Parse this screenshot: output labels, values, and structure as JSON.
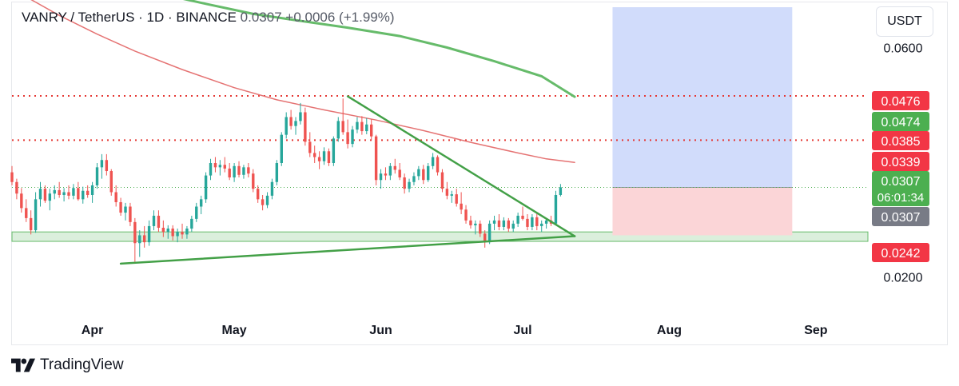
{
  "header": {
    "symbol": "VANRY / TetherUS · 1D · BINANCE",
    "last": "0.0307",
    "change": "+0.0006 (+1.99%)"
  },
  "currency_button": "USDT",
  "footer": {
    "brand": "TradingView",
    "icon": "tradingview-logo-icon"
  },
  "chart_data": {
    "type": "candlestick",
    "title": "VANRY / TetherUS · 1D · BINANCE",
    "x_tick_labels": [
      "Apr",
      "May",
      "Jun",
      "Jul",
      "Aug",
      "Sep"
    ],
    "x_ticks": [
      "2024-04-01",
      "2024-05-01",
      "2024-06-01",
      "2024-07-01",
      "2024-08-01",
      "2024-09-01"
    ],
    "x_range": [
      "2024-03-15",
      "2024-09-12"
    ],
    "y_scale": "log",
    "y_range": [
      0.0166,
      0.0745
    ],
    "y_tick_labels": [
      "0.0600",
      "0.0200"
    ],
    "y_ticks": [
      0.06,
      0.02
    ],
    "price_labels": [
      {
        "value": "0.0476",
        "color": "#f23645"
      },
      {
        "value": "0.0474",
        "color": "#4caf50"
      },
      {
        "value": "0.0385",
        "color": "#f23645"
      },
      {
        "value": "0.0339",
        "color": "#f23645"
      },
      {
        "value": "0.0307",
        "sub": "06:01:34",
        "color": "#4caf50"
      },
      {
        "value": "0.0307",
        "color": "#787b86"
      },
      {
        "value": "0.0242",
        "color": "#f23645"
      }
    ],
    "horizontal_lines": [
      {
        "value": 0.0476,
        "style": "dotted",
        "color": "#e53935"
      },
      {
        "value": 0.0385,
        "style": "dotted",
        "color": "#e53935"
      },
      {
        "value": 0.0307,
        "style": "dotted",
        "color": "#4caf50"
      }
    ],
    "support_zone": [
      0.0237,
      0.0248
    ],
    "position_tool": {
      "start": "2024-07-20",
      "end": "2024-08-27",
      "entry": 0.0307,
      "stop": 0.0244,
      "target": 0.0728,
      "profit_color": "#d1dcfb",
      "loss_color": "#fbd5d7"
    },
    "trendlines": [
      {
        "from": [
          "2024-05-25",
          0.0475
        ],
        "to": [
          "2024-07-12",
          0.0243
        ],
        "color": "#43a047"
      },
      {
        "from": [
          "2024-04-07",
          0.0213
        ],
        "to": [
          "2024-07-12",
          0.0243
        ],
        "color": "#43a047"
      }
    ],
    "moving_averages": [
      {
        "color": "#e57373",
        "points": [
          [
            "2024-03-17",
            0.0775
          ],
          [
            "2024-03-25",
            0.07
          ],
          [
            "2024-04-02",
            0.064
          ],
          [
            "2024-04-10",
            0.059
          ],
          [
            "2024-04-20",
            0.054
          ],
          [
            "2024-05-01",
            0.0495
          ],
          [
            "2024-05-10",
            0.0467
          ],
          [
            "2024-05-20",
            0.0445
          ],
          [
            "2024-05-31",
            0.0424
          ],
          [
            "2024-06-10",
            0.0403
          ],
          [
            "2024-06-20",
            0.0381
          ],
          [
            "2024-06-30",
            0.0362
          ],
          [
            "2024-07-06",
            0.0352
          ],
          [
            "2024-07-12",
            0.0346
          ]
        ]
      },
      {
        "color": "#66bb6a",
        "points": [
          [
            "2024-04-15",
            0.0778
          ],
          [
            "2024-04-25",
            0.074
          ],
          [
            "2024-05-05",
            0.0705
          ],
          [
            "2024-05-15",
            0.0682
          ],
          [
            "2024-05-25",
            0.066
          ],
          [
            "2024-06-05",
            0.0634
          ],
          [
            "2024-06-15",
            0.06
          ],
          [
            "2024-06-25",
            0.0562
          ],
          [
            "2024-07-05",
            0.0523
          ],
          [
            "2024-07-12",
            0.0474
          ]
        ]
      }
    ],
    "candles": [
      [
        "2024-03-15",
        0.033,
        0.034,
        0.031,
        0.0315
      ],
      [
        "2024-03-16",
        0.0315,
        0.032,
        0.029,
        0.0298
      ],
      [
        "2024-03-17",
        0.0298,
        0.0306,
        0.0272,
        0.0278
      ],
      [
        "2024-03-18",
        0.0278,
        0.029,
        0.026,
        0.0265
      ],
      [
        "2024-03-19",
        0.0265,
        0.0275,
        0.0245,
        0.025
      ],
      [
        "2024-03-20",
        0.025,
        0.03,
        0.0247,
        0.029
      ],
      [
        "2024-03-21",
        0.029,
        0.0315,
        0.028,
        0.0305
      ],
      [
        "2024-03-22",
        0.0305,
        0.031,
        0.0285,
        0.0288
      ],
      [
        "2024-03-23",
        0.0288,
        0.0305,
        0.0275,
        0.0298
      ],
      [
        "2024-03-24",
        0.0298,
        0.031,
        0.029,
        0.0303
      ],
      [
        "2024-03-25",
        0.0303,
        0.0315,
        0.0292,
        0.0296
      ],
      [
        "2024-03-26",
        0.0296,
        0.0306,
        0.0287,
        0.03
      ],
      [
        "2024-03-27",
        0.03,
        0.031,
        0.029,
        0.0295
      ],
      [
        "2024-03-28",
        0.0295,
        0.0312,
        0.029,
        0.0306
      ],
      [
        "2024-03-29",
        0.0306,
        0.0315,
        0.0288,
        0.029
      ],
      [
        "2024-03-30",
        0.029,
        0.0308,
        0.0284,
        0.0302
      ],
      [
        "2024-03-31",
        0.0302,
        0.031,
        0.0292,
        0.0296
      ],
      [
        "2024-04-01",
        0.0296,
        0.0315,
        0.0285,
        0.031
      ],
      [
        "2024-04-02",
        0.031,
        0.0345,
        0.0305,
        0.0338
      ],
      [
        "2024-04-03",
        0.0338,
        0.036,
        0.032,
        0.035
      ],
      [
        "2024-04-04",
        0.035,
        0.036,
        0.0325,
        0.0332
      ],
      [
        "2024-04-05",
        0.0332,
        0.0335,
        0.0295,
        0.03
      ],
      [
        "2024-04-06",
        0.03,
        0.031,
        0.028,
        0.0286
      ],
      [
        "2024-04-07",
        0.0286,
        0.0292,
        0.0268,
        0.0272
      ],
      [
        "2024-04-08",
        0.0272,
        0.0285,
        0.0262,
        0.028
      ],
      [
        "2024-04-09",
        0.028,
        0.0285,
        0.0255,
        0.026
      ],
      [
        "2024-04-10",
        0.026,
        0.0265,
        0.0215,
        0.0235
      ],
      [
        "2024-04-11",
        0.0235,
        0.025,
        0.022,
        0.0244
      ],
      [
        "2024-04-12",
        0.0244,
        0.0255,
        0.023,
        0.0236
      ],
      [
        "2024-04-13",
        0.0236,
        0.0262,
        0.0232,
        0.0255
      ],
      [
        "2024-04-14",
        0.0255,
        0.0275,
        0.025,
        0.0268
      ],
      [
        "2024-04-15",
        0.0268,
        0.0275,
        0.0248,
        0.0253
      ],
      [
        "2024-04-16",
        0.0253,
        0.0262,
        0.0242,
        0.0248
      ],
      [
        "2024-04-17",
        0.0248,
        0.0256,
        0.024,
        0.0252
      ],
      [
        "2024-04-18",
        0.0252,
        0.0256,
        0.0238,
        0.0243
      ],
      [
        "2024-04-19",
        0.0243,
        0.0252,
        0.0236,
        0.0248
      ],
      [
        "2024-04-20",
        0.0248,
        0.0258,
        0.024,
        0.0245
      ],
      [
        "2024-04-21",
        0.0245,
        0.0255,
        0.024,
        0.0252
      ],
      [
        "2024-04-22",
        0.0252,
        0.0268,
        0.0248,
        0.0264
      ],
      [
        "2024-04-23",
        0.0264,
        0.0285,
        0.026,
        0.028
      ],
      [
        "2024-04-24",
        0.028,
        0.0295,
        0.027,
        0.029
      ],
      [
        "2024-04-25",
        0.029,
        0.033,
        0.0285,
        0.0325
      ],
      [
        "2024-04-26",
        0.0325,
        0.0352,
        0.0318,
        0.0345
      ],
      [
        "2024-04-27",
        0.0345,
        0.0355,
        0.033,
        0.0338
      ],
      [
        "2024-04-28",
        0.0338,
        0.035,
        0.0325,
        0.0342
      ],
      [
        "2024-04-29",
        0.0342,
        0.0355,
        0.033,
        0.0336
      ],
      [
        "2024-04-30",
        0.0336,
        0.0345,
        0.0318,
        0.0322
      ],
      [
        "2024-05-01",
        0.0322,
        0.0345,
        0.0315,
        0.034
      ],
      [
        "2024-05-02",
        0.034,
        0.0348,
        0.0322,
        0.0326
      ],
      [
        "2024-05-03",
        0.0326,
        0.0342,
        0.032,
        0.0338
      ],
      [
        "2024-05-04",
        0.0338,
        0.0345,
        0.0322,
        0.0328
      ],
      [
        "2024-05-05",
        0.0328,
        0.0335,
        0.03,
        0.0305
      ],
      [
        "2024-05-06",
        0.0305,
        0.031,
        0.0285,
        0.029
      ],
      [
        "2024-05-07",
        0.029,
        0.0296,
        0.0275,
        0.0282
      ],
      [
        "2024-05-08",
        0.0282,
        0.03,
        0.0278,
        0.0295
      ],
      [
        "2024-05-09",
        0.0295,
        0.032,
        0.029,
        0.0315
      ],
      [
        "2024-05-10",
        0.0315,
        0.035,
        0.031,
        0.0345
      ],
      [
        "2024-05-11",
        0.0345,
        0.04,
        0.034,
        0.0395
      ],
      [
        "2024-05-12",
        0.0395,
        0.044,
        0.0388,
        0.043
      ],
      [
        "2024-05-13",
        0.043,
        0.0445,
        0.0405,
        0.0412
      ],
      [
        "2024-05-14",
        0.0412,
        0.043,
        0.0395,
        0.0422
      ],
      [
        "2024-05-15",
        0.0422,
        0.046,
        0.0415,
        0.044
      ],
      [
        "2024-05-16",
        0.044,
        0.045,
        0.0375,
        0.0382
      ],
      [
        "2024-05-17",
        0.0382,
        0.04,
        0.0355,
        0.0362
      ],
      [
        "2024-05-18",
        0.0362,
        0.0375,
        0.0345,
        0.0355
      ],
      [
        "2024-05-19",
        0.0355,
        0.0365,
        0.0335,
        0.0348
      ],
      [
        "2024-05-20",
        0.0348,
        0.0372,
        0.0342,
        0.0365
      ],
      [
        "2024-05-21",
        0.0365,
        0.037,
        0.034,
        0.0345
      ],
      [
        "2024-05-22",
        0.0345,
        0.0392,
        0.034,
        0.0388
      ],
      [
        "2024-05-23",
        0.0388,
        0.043,
        0.0382,
        0.0422
      ],
      [
        "2024-05-24",
        0.0422,
        0.047,
        0.0395,
        0.04
      ],
      [
        "2024-05-25",
        0.04,
        0.0425,
        0.037,
        0.0378
      ],
      [
        "2024-05-26",
        0.0378,
        0.0412,
        0.0372,
        0.0405
      ],
      [
        "2024-05-27",
        0.0405,
        0.043,
        0.0398,
        0.042
      ],
      [
        "2024-05-28",
        0.042,
        0.0432,
        0.0395,
        0.0402
      ],
      [
        "2024-05-29",
        0.0402,
        0.0428,
        0.0396,
        0.0415
      ],
      [
        "2024-05-30",
        0.0415,
        0.0425,
        0.0385,
        0.0392
      ],
      [
        "2024-05-31",
        0.0392,
        0.0395,
        0.031,
        0.0318
      ],
      [
        "2024-06-01",
        0.0318,
        0.0335,
        0.0305,
        0.0328
      ],
      [
        "2024-06-02",
        0.0328,
        0.0338,
        0.0318,
        0.0325
      ],
      [
        "2024-06-03",
        0.0325,
        0.0345,
        0.0318,
        0.034
      ],
      [
        "2024-06-04",
        0.034,
        0.0352,
        0.0328,
        0.0334
      ],
      [
        "2024-06-05",
        0.0334,
        0.0345,
        0.0318,
        0.0322
      ],
      [
        "2024-06-06",
        0.0322,
        0.0328,
        0.0298,
        0.0305
      ],
      [
        "2024-06-07",
        0.0305,
        0.032,
        0.03,
        0.0315
      ],
      [
        "2024-06-08",
        0.0315,
        0.033,
        0.031,
        0.0324
      ],
      [
        "2024-06-09",
        0.0324,
        0.034,
        0.0318,
        0.0335
      ],
      [
        "2024-06-10",
        0.0335,
        0.0342,
        0.0312,
        0.0318
      ],
      [
        "2024-06-11",
        0.0318,
        0.0345,
        0.0315,
        0.034
      ],
      [
        "2024-06-12",
        0.034,
        0.0362,
        0.0335,
        0.0355
      ],
      [
        "2024-06-13",
        0.0355,
        0.0358,
        0.0325,
        0.033
      ],
      [
        "2024-06-14",
        0.033,
        0.0335,
        0.03,
        0.0305
      ],
      [
        "2024-06-15",
        0.0305,
        0.0315,
        0.029,
        0.0295
      ],
      [
        "2024-06-16",
        0.0295,
        0.0302,
        0.0285,
        0.0297
      ],
      [
        "2024-06-17",
        0.0297,
        0.0305,
        0.028,
        0.0284
      ],
      [
        "2024-06-18",
        0.0284,
        0.03,
        0.027,
        0.0276
      ],
      [
        "2024-06-19",
        0.0276,
        0.0282,
        0.0258,
        0.0262
      ],
      [
        "2024-06-20",
        0.0262,
        0.0268,
        0.0252,
        0.0256
      ],
      [
        "2024-06-21",
        0.0256,
        0.0262,
        0.0245,
        0.0258
      ],
      [
        "2024-06-22",
        0.0258,
        0.0262,
        0.0242,
        0.0246
      ],
      [
        "2024-06-23",
        0.0246,
        0.025,
        0.023,
        0.0236
      ],
      [
        "2024-06-24",
        0.0236,
        0.0262,
        0.0234,
        0.0258
      ],
      [
        "2024-06-25",
        0.0258,
        0.0268,
        0.025,
        0.0262
      ],
      [
        "2024-06-26",
        0.0262,
        0.027,
        0.025,
        0.0254
      ],
      [
        "2024-06-27",
        0.0254,
        0.0266,
        0.025,
        0.0262
      ],
      [
        "2024-06-28",
        0.0262,
        0.0265,
        0.0248,
        0.0252
      ],
      [
        "2024-06-29",
        0.0252,
        0.0262,
        0.0248,
        0.0258
      ],
      [
        "2024-06-30",
        0.0258,
        0.0272,
        0.0254,
        0.0268
      ],
      [
        "2024-07-01",
        0.0268,
        0.028,
        0.0262,
        0.0264
      ],
      [
        "2024-07-02",
        0.0264,
        0.027,
        0.025,
        0.0254
      ],
      [
        "2024-07-03",
        0.0254,
        0.027,
        0.025,
        0.0266
      ],
      [
        "2024-07-04",
        0.0266,
        0.0272,
        0.025,
        0.0255
      ],
      [
        "2024-07-05",
        0.0255,
        0.0262,
        0.0248,
        0.0258
      ],
      [
        "2024-07-06",
        0.0258,
        0.0265,
        0.0252,
        0.0262
      ],
      [
        "2024-07-07",
        0.0262,
        0.0268,
        0.0255,
        0.0258
      ],
      [
        "2024-07-08",
        0.0258,
        0.0302,
        0.0256,
        0.0296
      ],
      [
        "2024-07-09",
        0.0296,
        0.0312,
        0.0294,
        0.0307
      ]
    ]
  }
}
